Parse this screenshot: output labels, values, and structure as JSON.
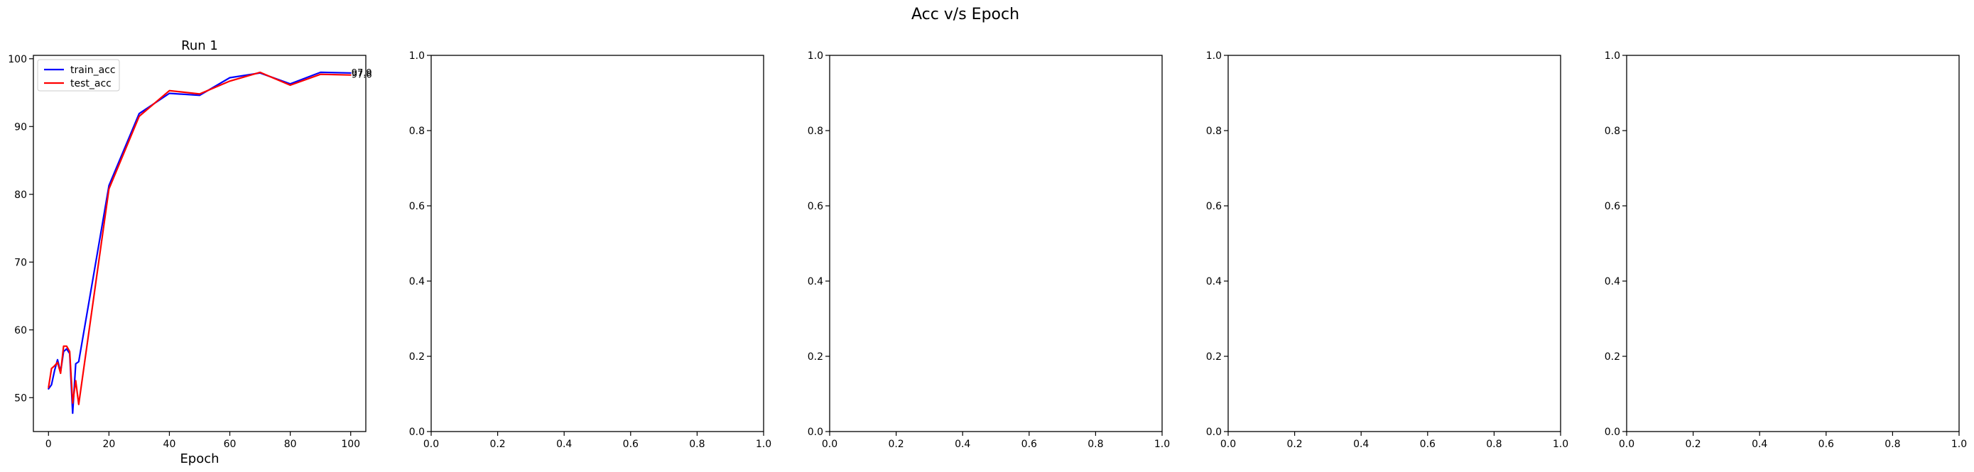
{
  "suptitle": "Acc v/s Epoch",
  "chart_data": [
    {
      "type": "line",
      "title": "Run 1",
      "xlabel": "Epoch",
      "ylabel": "",
      "xlim": [
        -5,
        105
      ],
      "ylim": [
        45,
        100.5
      ],
      "xticks": [
        "0",
        "20",
        "40",
        "60",
        "80",
        "100"
      ],
      "yticks": [
        "50",
        "60",
        "70",
        "80",
        "90",
        "100"
      ],
      "legend_position": "upper-left",
      "series": [
        {
          "name": "train_acc",
          "color": "#0000ff",
          "x": [
            0,
            1,
            2,
            3,
            4,
            5,
            6,
            7,
            8,
            9,
            10,
            20,
            30,
            40,
            50,
            60,
            70,
            80,
            90,
            100
          ],
          "y": [
            51.3,
            51.9,
            54.0,
            55.6,
            53.8,
            56.8,
            57.2,
            56.5,
            47.7,
            55.0,
            55.3,
            81.3,
            91.9,
            94.9,
            94.6,
            97.2,
            97.9,
            96.3,
            98.0,
            97.9
          ]
        },
        {
          "name": "test_acc",
          "color": "#ff0000",
          "x": [
            0,
            1,
            2,
            3,
            4,
            5,
            6,
            7,
            8,
            9,
            10,
            20,
            30,
            40,
            50,
            60,
            70,
            80,
            90,
            100
          ],
          "y": [
            51.5,
            54.3,
            54.7,
            55.2,
            53.6,
            57.6,
            57.6,
            56.8,
            49.2,
            52.5,
            49.0,
            80.8,
            91.5,
            95.3,
            94.8,
            96.7,
            98.0,
            96.1,
            97.7,
            97.6
          ]
        }
      ],
      "annotations": [
        {
          "x": 100,
          "y": 97.9,
          "text": "97.9"
        },
        {
          "x": 100,
          "y": 97.6,
          "text": "97.6"
        }
      ]
    },
    {
      "type": "line",
      "title": "",
      "xlabel": "",
      "xlim": [
        0,
        1
      ],
      "ylim": [
        0,
        1
      ],
      "xticks": [
        "0.0",
        "0.2",
        "0.4",
        "0.6",
        "0.8",
        "1.0"
      ],
      "yticks": [
        "0.0",
        "0.2",
        "0.4",
        "0.6",
        "0.8",
        "1.0"
      ],
      "series": []
    },
    {
      "type": "line",
      "title": "",
      "xlabel": "",
      "xlim": [
        0,
        1
      ],
      "ylim": [
        0,
        1
      ],
      "xticks": [
        "0.0",
        "0.2",
        "0.4",
        "0.6",
        "0.8",
        "1.0"
      ],
      "yticks": [
        "0.0",
        "0.2",
        "0.4",
        "0.6",
        "0.8",
        "1.0"
      ],
      "series": []
    },
    {
      "type": "line",
      "title": "",
      "xlabel": "",
      "xlim": [
        0,
        1
      ],
      "ylim": [
        0,
        1
      ],
      "xticks": [
        "0.0",
        "0.2",
        "0.4",
        "0.6",
        "0.8",
        "1.0"
      ],
      "yticks": [
        "0.0",
        "0.2",
        "0.4",
        "0.6",
        "0.8",
        "1.0"
      ],
      "series": []
    },
    {
      "type": "line",
      "title": "",
      "xlabel": "",
      "xlim": [
        0,
        1
      ],
      "ylim": [
        0,
        1
      ],
      "xticks": [
        "0.0",
        "0.2",
        "0.4",
        "0.6",
        "0.8",
        "1.0"
      ],
      "yticks": [
        "0.0",
        "0.2",
        "0.4",
        "0.6",
        "0.8",
        "1.0"
      ],
      "series": []
    }
  ]
}
